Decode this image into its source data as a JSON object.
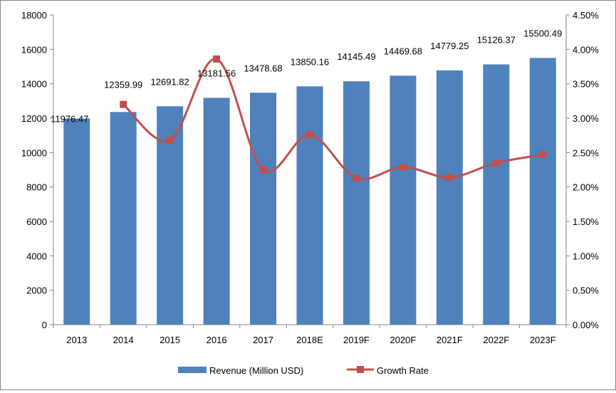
{
  "chart_data": {
    "type": "bar+line",
    "categories": [
      "2013",
      "2014",
      "2015",
      "2016",
      "2017",
      "2018E",
      "2019F",
      "2020F",
      "2021F",
      "2022F",
      "2023F"
    ],
    "series": [
      {
        "name": "Revenue (Million USD)",
        "type": "bar",
        "axis": "left",
        "color": "#4f81bd",
        "values": [
          11976.47,
          12359.99,
          12691.82,
          13181.56,
          13478.68,
          13850.16,
          14145.49,
          14469.68,
          14779.25,
          15126.37,
          15500.49
        ],
        "labels": [
          "11976.47",
          "12359.99",
          "12691.82",
          "13181.56",
          "13478.68",
          "13850.16",
          "14145.49",
          "14469.68",
          "14779.25",
          "15126.37",
          "15500.49"
        ]
      },
      {
        "name": "Growth Rate",
        "type": "line",
        "axis": "right",
        "color": "#c0504d",
        "smooth": true,
        "values": [
          null,
          3.2,
          2.68,
          3.86,
          2.25,
          2.76,
          2.13,
          2.29,
          2.14,
          2.35,
          2.47
        ]
      }
    ],
    "left_axis": {
      "ylim": [
        0,
        18000
      ],
      "ticks": [
        "0",
        "2000",
        "4000",
        "6000",
        "8000",
        "10000",
        "12000",
        "14000",
        "16000",
        "18000"
      ]
    },
    "right_axis": {
      "ylim": [
        0,
        4.5
      ],
      "ticks": [
        "0.00%",
        "0.50%",
        "1.00%",
        "1.50%",
        "2.00%",
        "2.50%",
        "3.00%",
        "3.50%",
        "4.00%",
        "4.50%"
      ]
    },
    "grid": false,
    "legend": "bottom"
  }
}
